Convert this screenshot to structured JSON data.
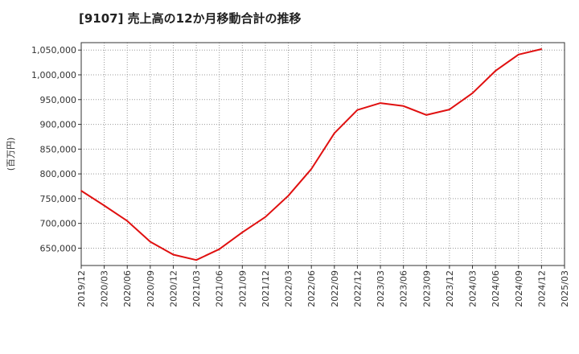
{
  "chart_data": {
    "type": "line",
    "title": "[9107]  売上高の12か月移動合計の推移",
    "ylabel": "(百万円)",
    "xlabel": "",
    "ylim": [
      615000,
      1065000
    ],
    "grid": true,
    "x_ticks": [
      "2019/12",
      "2020/03",
      "2020/06",
      "2020/09",
      "2020/12",
      "2021/03",
      "2021/06",
      "2021/09",
      "2021/12",
      "2022/03",
      "2022/06",
      "2022/09",
      "2022/12",
      "2023/03",
      "2023/06",
      "2023/09",
      "2023/12",
      "2024/03",
      "2024/06",
      "2024/09",
      "2024/12",
      "2025/03"
    ],
    "y_ticks": [
      650000,
      700000,
      750000,
      800000,
      850000,
      900000,
      950000,
      1000000,
      1050000
    ],
    "y_tick_labels": [
      "650,000",
      "700,000",
      "750,000",
      "800,000",
      "850,000",
      "900,000",
      "950,000",
      "1,000,000",
      "1,050,000"
    ],
    "series": [
      {
        "name": "売上高の12か月移動合計",
        "color": "#e01010",
        "x": [
          "2019/12",
          "2020/03",
          "2020/06",
          "2020/09",
          "2020/12",
          "2021/03",
          "2021/06",
          "2021/09",
          "2021/12",
          "2022/03",
          "2022/06",
          "2022/09",
          "2022/12",
          "2023/03",
          "2023/06",
          "2023/09",
          "2023/12",
          "2024/03",
          "2024/06",
          "2024/09",
          "2024/12"
        ],
        "values": [
          766000,
          736000,
          705000,
          663000,
          637000,
          626000,
          648000,
          682000,
          713000,
          756000,
          810000,
          882000,
          929000,
          943000,
          937000,
          919000,
          930000,
          963000,
          1008000,
          1041000,
          1052000
        ]
      }
    ]
  }
}
